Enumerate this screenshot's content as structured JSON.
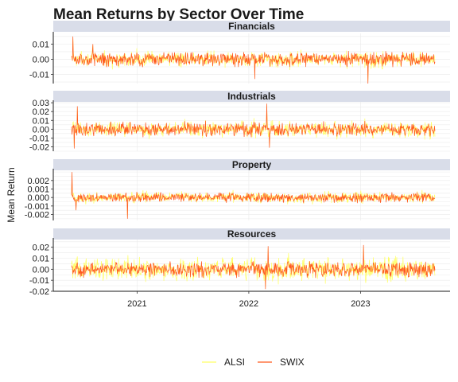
{
  "chart_data": {
    "type": "line",
    "title": "Mean Returns by Sector Over Time",
    "ylabel": "Mean Return",
    "xlabel": "",
    "x_range": [
      "2020-06-01",
      "2023-09-01"
    ],
    "x_ticks": [
      {
        "date": "2021-01-01",
        "label": "2021"
      },
      {
        "date": "2022-01-01",
        "label": "2022"
      },
      {
        "date": "2023-01-01",
        "label": "2023"
      }
    ],
    "legend": {
      "placement": "bottom",
      "entries": [
        {
          "name": "ALSI",
          "color": "#ffff66"
        },
        {
          "name": "SWIX",
          "color": "#ff5a1f"
        }
      ]
    },
    "panels": [
      {
        "name": "Financials",
        "ylim": [
          -0.016,
          0.017
        ],
        "y_ticks": [
          {
            "value": 0.01,
            "label": "0.01"
          },
          {
            "value": 0.0,
            "label": "0.00"
          },
          {
            "value": -0.01,
            "label": "-0.01"
          }
        ],
        "alsi_amplitude": 0.004,
        "swix_amplitude": 0.004,
        "spikes": [
          {
            "date": "2020-06-05",
            "value": 0.015
          },
          {
            "date": "2022-01-20",
            "value": -0.013
          },
          {
            "date": "2023-01-25",
            "value": -0.016
          },
          {
            "date": "2020-08-10",
            "value": 0.01
          }
        ]
      },
      {
        "name": "Industrials",
        "ylim": [
          -0.025,
          0.031
        ],
        "y_ticks": [
          {
            "value": 0.03,
            "label": "0.03"
          },
          {
            "value": 0.02,
            "label": "0.02"
          },
          {
            "value": 0.01,
            "label": "0.01"
          },
          {
            "value": 0.0,
            "label": "0.00"
          },
          {
            "value": -0.01,
            "label": "-0.01"
          },
          {
            "value": -0.02,
            "label": "-0.02"
          }
        ],
        "alsi_amplitude": 0.007,
        "swix_amplitude": 0.007,
        "spikes": [
          {
            "date": "2020-06-20",
            "value": 0.026
          },
          {
            "date": "2022-03-01",
            "value": 0.029
          },
          {
            "date": "2022-03-10",
            "value": -0.021
          },
          {
            "date": "2020-06-10",
            "value": -0.022
          }
        ]
      },
      {
        "name": "Property",
        "ylim": [
          -0.0027,
          0.0032
        ],
        "y_ticks": [
          {
            "value": 0.002,
            "label": "0.002"
          },
          {
            "value": 0.001,
            "label": "0.001"
          },
          {
            "value": 0.0,
            "label": "0.000"
          },
          {
            "value": -0.001,
            "label": "-0.001"
          },
          {
            "value": -0.002,
            "label": "-0.002"
          }
        ],
        "alsi_amplitude": 0.0005,
        "swix_amplitude": 0.0005,
        "spikes": [
          {
            "date": "2020-06-03",
            "value": 0.003
          },
          {
            "date": "2020-06-15",
            "value": -0.0015
          },
          {
            "date": "2020-12-01",
            "value": -0.0025
          }
        ]
      },
      {
        "name": "Resources",
        "ylim": [
          -0.02,
          0.027
        ],
        "y_ticks": [
          {
            "value": 0.02,
            "label": "0.02"
          },
          {
            "value": 0.01,
            "label": "0.01"
          },
          {
            "value": 0.0,
            "label": "0.00"
          },
          {
            "value": -0.01,
            "label": "-0.01"
          },
          {
            "value": -0.02,
            "label": "-0.02"
          }
        ],
        "alsi_amplitude": 0.009,
        "swix_amplitude": 0.006,
        "spikes": [
          {
            "date": "2022-03-05",
            "value": 0.021
          },
          {
            "date": "2023-01-10",
            "value": 0.022
          },
          {
            "date": "2022-02-25",
            "value": -0.018
          }
        ]
      }
    ]
  }
}
